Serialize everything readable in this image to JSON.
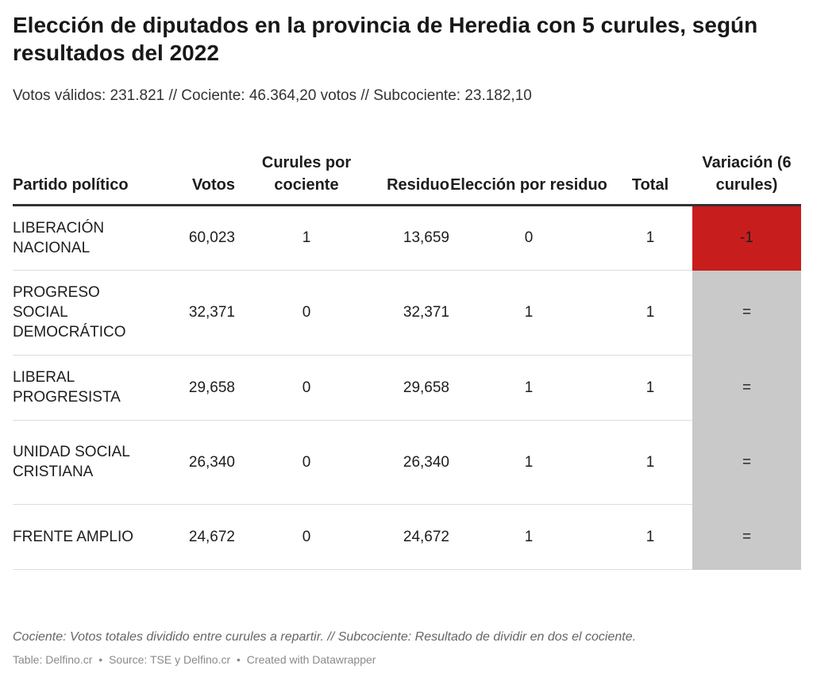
{
  "header": {
    "title": "Elección de diputados en la provincia de Heredia con 5 curules, según resultados del 2022",
    "subtitle": "Votos válidos: 231.821 // Cociente: 46.364,20 votos // Subcociente: 23.182,10"
  },
  "chart_data": {
    "type": "table",
    "title": "Elección de diputados en la provincia de Heredia con 5 curules, según resultados del 2022",
    "subtitle": "Votos válidos: 231.821 // Cociente: 46.364,20 votos // Subcociente: 23.182,10",
    "columns": [
      "Partido político",
      "Votos",
      "Curules por cociente",
      "Residuo",
      "Elección por residuo",
      "Total",
      "Variación (6 curules)"
    ],
    "rows": [
      {
        "party": "Liberación Nacional",
        "votes": "60,023",
        "seats_quotient": "1",
        "residue": "13,659",
        "seats_residue": "0",
        "total": "1",
        "variation": "-1",
        "variation_type": "down"
      },
      {
        "party": "Progreso Social Democrático",
        "votes": "32,371",
        "seats_quotient": "0",
        "residue": "32,371",
        "seats_residue": "1",
        "total": "1",
        "variation": "=",
        "variation_type": "same"
      },
      {
        "party": "Liberal Progresista",
        "votes": "29,658",
        "seats_quotient": "0",
        "residue": "29,658",
        "seats_residue": "1",
        "total": "1",
        "variation": "=",
        "variation_type": "same"
      },
      {
        "party": "Unidad Social Cristiana",
        "votes": "26,340",
        "seats_quotient": "0",
        "residue": "26,340",
        "seats_residue": "1",
        "total": "1",
        "variation": "=",
        "variation_type": "same"
      },
      {
        "party": "Frente Amplio",
        "votes": "24,672",
        "seats_quotient": "0",
        "residue": "24,672",
        "seats_residue": "1",
        "total": "1",
        "variation": "=",
        "variation_type": "same"
      }
    ],
    "colors": {
      "decrease": "#c71e1d",
      "no_change": "#c9c9c9"
    }
  },
  "footer": {
    "notes": "Cociente: Votos totales dividido entre curules a repartir. // Subcociente: Resultado de dividir en dos el cociente.",
    "credit": "Table: Delfino.cr",
    "source": "Source: TSE y Delfino.cr",
    "created": "Created with Datawrapper",
    "separator": "•"
  }
}
